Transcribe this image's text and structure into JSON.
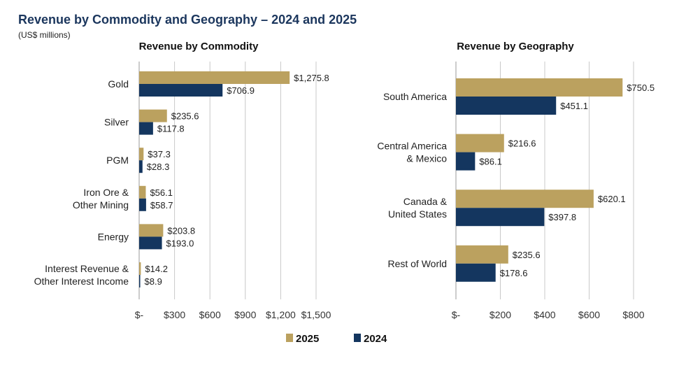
{
  "title": "Revenue by Commodity and Geography – 2024 and 2025",
  "subtitle": "(US$ millions)",
  "colors": {
    "2025": "#bba15f",
    "2024": "#14365f",
    "grid": "#c8c8c8"
  },
  "legend": {
    "placement": "bottom-center",
    "items": [
      "2025",
      "2024"
    ]
  },
  "chart_data": [
    {
      "type": "bar",
      "orientation": "horizontal",
      "title": "Revenue by Commodity",
      "categories": [
        [
          "Gold"
        ],
        [
          "Silver"
        ],
        [
          "PGM"
        ],
        [
          "Iron Ore &",
          "Other Mining"
        ],
        [
          "Energy"
        ],
        [
          "Interest Revenue &",
          "Other Interest Income"
        ]
      ],
      "series": [
        {
          "name": "2025",
          "values": [
            1275.8,
            235.6,
            37.3,
            56.1,
            203.8,
            14.2
          ],
          "labels": [
            "$1,275.8",
            "$235.6",
            "$37.3",
            "$56.1",
            "$203.8",
            "$14.2"
          ]
        },
        {
          "name": "2024",
          "values": [
            706.9,
            117.8,
            28.3,
            58.7,
            193.0,
            8.9
          ],
          "labels": [
            "$706.9",
            "$117.8",
            "$28.3",
            "$58.7",
            "$193.0",
            "$8.9"
          ]
        }
      ],
      "xlim": [
        0,
        1500
      ],
      "xticks": [
        0,
        300,
        600,
        900,
        1200,
        1500
      ],
      "xtick_labels": [
        "$-",
        "$300",
        "$600",
        "$900",
        "$1,200",
        "$1,500"
      ],
      "grid": true
    },
    {
      "type": "bar",
      "orientation": "horizontal",
      "title": "Revenue by Geography",
      "categories": [
        [
          "South America"
        ],
        [
          "Central America",
          "& Mexico"
        ],
        [
          "Canada &",
          "United States"
        ],
        [
          "Rest of World"
        ]
      ],
      "series": [
        {
          "name": "2025",
          "values": [
            750.5,
            216.6,
            620.1,
            235.6
          ],
          "labels": [
            "$750.5",
            "$216.6",
            "$620.1",
            "$235.6"
          ]
        },
        {
          "name": "2024",
          "values": [
            451.1,
            86.1,
            397.8,
            178.6
          ],
          "labels": [
            "$451.1",
            "$86.1",
            "$397.8",
            "$178.6"
          ]
        }
      ],
      "xlim": [
        0,
        800
      ],
      "xticks": [
        0,
        200,
        400,
        600,
        800
      ],
      "xtick_labels": [
        "$-",
        "$200",
        "$400",
        "$600",
        "$800"
      ],
      "grid": true
    }
  ]
}
